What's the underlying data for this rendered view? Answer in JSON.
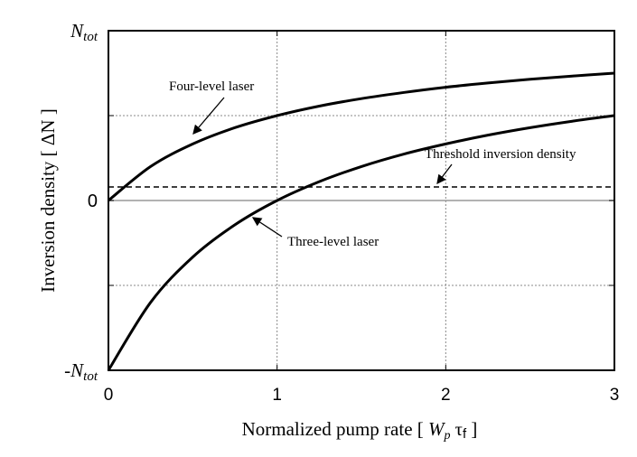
{
  "chart_data": {
    "type": "line",
    "xlabel": "Normalized pump rate [ W_p τ_f ]",
    "xlabel_parts": {
      "prefix": "Normalized pump rate [ ",
      "w": "W",
      "wsub": "p",
      "tau": "τ",
      "tausub": "f",
      "suffix": " ]"
    },
    "ylabel": "Inversion density [ ΔN ]",
    "xlim": [
      0,
      3
    ],
    "ylim": [
      -1,
      1
    ],
    "x_ticks": [
      "0",
      "1",
      "2",
      "3"
    ],
    "y_ticks": [
      {
        "value": 1,
        "label": "N",
        "sub": "tot"
      },
      {
        "value": 0,
        "label": "0",
        "sub": ""
      },
      {
        "value": -1,
        "label": "-N",
        "sub": "tot"
      }
    ],
    "grid": "dotted at x=1,2 and y=±0.5",
    "x": [
      0,
      0.25,
      0.5,
      0.75,
      1,
      1.25,
      1.5,
      1.75,
      2,
      2.25,
      2.5,
      2.75,
      3
    ],
    "series": [
      {
        "name": "Four-level laser",
        "values": [
          0,
          0.2,
          0.333,
          0.429,
          0.5,
          0.556,
          0.6,
          0.636,
          0.667,
          0.692,
          0.714,
          0.733,
          0.75
        ]
      },
      {
        "name": "Three-level laser",
        "values": [
          -1,
          -0.6,
          -0.333,
          -0.143,
          0,
          0.111,
          0.2,
          0.273,
          0.333,
          0.385,
          0.429,
          0.467,
          0.5
        ]
      }
    ],
    "threshold": {
      "name": "Threshold inversion density",
      "value": 0.08
    },
    "colors": {
      "curve": "#000000",
      "grid": "#888888",
      "zero_line": "#999999"
    }
  }
}
